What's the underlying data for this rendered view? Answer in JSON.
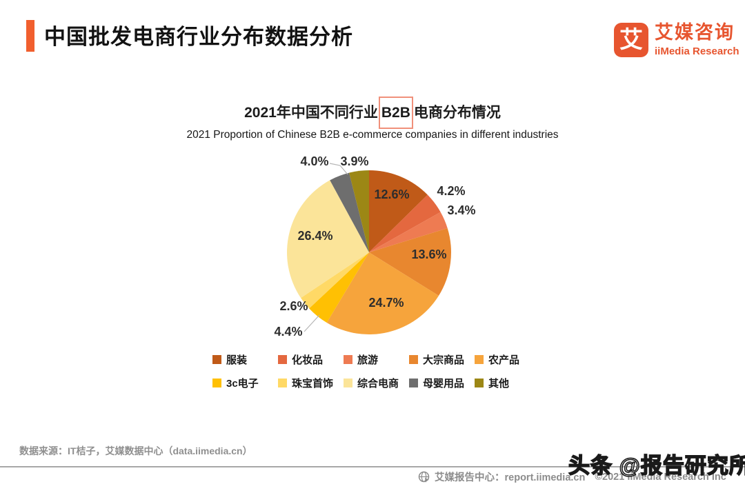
{
  "header": {
    "title": "中国批发电商行业分布数据分析"
  },
  "brand": {
    "logo_char": "艾",
    "name_cn": "艾媒咨询",
    "name_en": "iiMedia Research"
  },
  "chart": {
    "title_prefix": "2021年中国不同行业",
    "title_highlight": "B2B",
    "title_suffix": "电商分布情况",
    "subtitle": "2021 Proportion of Chinese B2B e-commerce companies in different industries"
  },
  "chart_data": {
    "type": "pie",
    "title": "2021年中国不同行业B2B电商分布情况",
    "subtitle": "2021 Proportion of Chinese B2B e-commerce companies in different industries",
    "categories": [
      "服装",
      "化妆品",
      "旅游",
      "大宗商品",
      "农产品",
      "3c电子",
      "珠宝首饰",
      "综合电商",
      "母婴用品",
      "其他"
    ],
    "values": [
      12.6,
      4.2,
      3.4,
      13.6,
      24.7,
      4.4,
      2.6,
      26.4,
      4.0,
      3.9
    ],
    "labels": [
      "12.6%",
      "4.2%",
      "3.4%",
      "13.6%",
      "24.7%",
      "4.4%",
      "2.6%",
      "26.4%",
      "4.0%",
      "3.9%"
    ],
    "colors": [
      "#C05A18",
      "#E4683F",
      "#EE7B52",
      "#E8872F",
      "#F6A43C",
      "#FFC003",
      "#FFD966",
      "#FBE499",
      "#6E6E6E",
      "#9C8715"
    ],
    "start_angle_deg": 0,
    "direction": "clockwise",
    "legend_position": "bottom"
  },
  "source_note": "数据来源：IT桔子，艾媒数据中心（data.iimedia.cn）",
  "footer": {
    "report_center": "艾媒报告中心：report.iimedia.cn",
    "copyright": "©2021  iiMedia Research  Inc"
  },
  "watermark": "头条 @报告研究所",
  "colors": {
    "accent_orange": "#F15F2E",
    "brand_orange": "#E7552F",
    "highlight_box": "#F0907A",
    "footer_gray": "#8C8C8C"
  }
}
